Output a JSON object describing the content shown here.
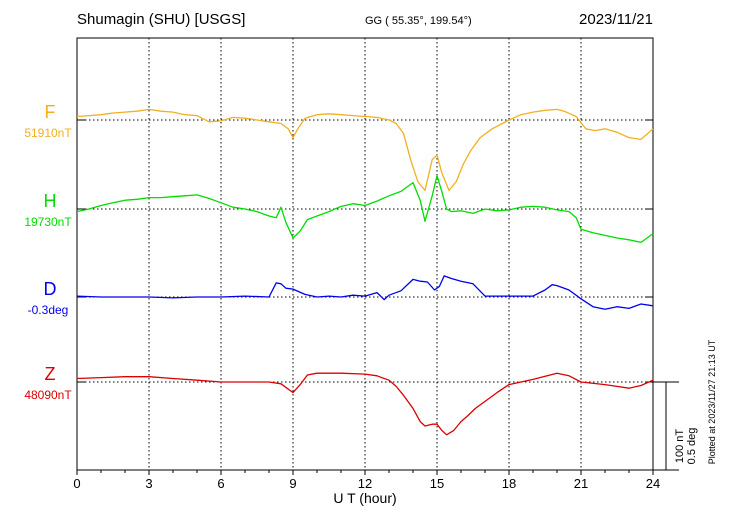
{
  "header": {
    "station": "Shumagin (SHU)  [USGS]",
    "coords": "GG ( 55.35°, 199.54°)",
    "date": "2023/11/21"
  },
  "plotted_note": "Plotted at 2023/11/27 21:13 UT",
  "scale_note": {
    "line1": "100 nT",
    "line2": "0.5 deg"
  },
  "chart_data": {
    "type": "line",
    "xlabel": "U T (hour)",
    "xlim": [
      0,
      24
    ],
    "xticks": [
      0,
      3,
      6,
      9,
      12,
      15,
      18,
      21,
      24
    ],
    "grid": true,
    "scale_nt_per_bar": 100,
    "series": [
      {
        "name": "F",
        "baseline_label": "51910nT",
        "color": "#f0b020",
        "x": [
          0,
          0.5,
          1,
          1.5,
          2,
          2.5,
          3,
          3.5,
          4,
          4.5,
          5,
          5.5,
          6,
          6.5,
          7,
          7.5,
          8,
          8.5,
          8.8,
          9,
          9.2,
          9.5,
          10,
          10.5,
          11,
          11.5,
          12,
          12.5,
          13,
          13.3,
          13.6,
          13.9,
          14.2,
          14.5,
          14.8,
          15,
          15.2,
          15.5,
          15.8,
          16.1,
          16.4,
          16.8,
          17.3,
          18,
          18.5,
          19,
          19.5,
          20,
          20.3,
          20.8,
          21.2,
          21.6,
          22,
          22.5,
          23,
          23.5,
          24
        ],
        "y": [
          4,
          5,
          6,
          8,
          9,
          10,
          12,
          10,
          9,
          6,
          5,
          -2,
          -1,
          3,
          2,
          0,
          -2,
          -4,
          -10,
          -20,
          -10,
          2,
          6,
          7,
          6,
          5,
          4,
          3,
          0,
          -4,
          -15,
          -45,
          -70,
          -80,
          -45,
          -40,
          -60,
          -80,
          -70,
          -50,
          -35,
          -20,
          -10,
          0,
          6,
          9,
          11,
          12,
          10,
          4,
          -10,
          -12,
          -10,
          -14,
          -20,
          -22,
          -10
        ]
      },
      {
        "name": "H",
        "baseline_label": "19730nT",
        "color": "#00dd00",
        "x": [
          0,
          0.5,
          1,
          1.5,
          2,
          2.5,
          3,
          3.5,
          4,
          4.5,
          5,
          5.5,
          6,
          6.5,
          7,
          7.5,
          8,
          8.3,
          8.5,
          8.7,
          9,
          9.3,
          9.6,
          10,
          10.5,
          11,
          11.5,
          12,
          12.5,
          13,
          13.5,
          14,
          14.3,
          14.5,
          14.8,
          15,
          15.2,
          15.4,
          15.6,
          16,
          16.5,
          17,
          17.5,
          18,
          18.5,
          19,
          19.5,
          20,
          20.5,
          20.8,
          21,
          21.5,
          22,
          22.5,
          23,
          23.5,
          24
        ],
        "y": [
          -3,
          0,
          4,
          7,
          10,
          11,
          13,
          13,
          14,
          15,
          16,
          12,
          7,
          2,
          0,
          -3,
          -8,
          -10,
          2,
          -15,
          -33,
          -25,
          -12,
          -8,
          -3,
          3,
          6,
          4,
          9,
          15,
          20,
          30,
          10,
          -14,
          15,
          38,
          20,
          0,
          -3,
          -2,
          -5,
          0,
          -2,
          -1,
          2,
          3,
          2,
          -1,
          -3,
          -10,
          -23,
          -27,
          -30,
          -33,
          -35,
          -38,
          -28
        ]
      },
      {
        "name": "D",
        "baseline_label": "-0.3deg",
        "color": "#0000ee",
        "x": [
          0,
          1,
          2,
          3,
          4,
          5,
          6,
          7,
          8,
          8.3,
          8.5,
          8.7,
          9,
          9.5,
          10,
          10.5,
          11,
          11.5,
          12,
          12.5,
          12.8,
          13,
          13.5,
          14,
          14.3,
          14.6,
          14.9,
          15.1,
          15.3,
          15.6,
          16,
          16.5,
          17,
          18,
          19,
          19.5,
          19.8,
          20,
          20.5,
          21,
          21.5,
          22,
          22.5,
          23,
          23.5,
          24
        ],
        "y": [
          1,
          0,
          0,
          0,
          -1,
          0,
          0,
          1,
          0,
          16,
          15,
          10,
          9,
          3,
          0,
          1,
          0,
          2,
          1,
          5,
          -3,
          2,
          7,
          20,
          18,
          17,
          8,
          12,
          24,
          21,
          18,
          15,
          1,
          1,
          1,
          8,
          14,
          13,
          8,
          -2,
          -11,
          -14,
          -11,
          -13,
          -8,
          -10
        ]
      },
      {
        "name": "Z",
        "baseline_label": "48090nT",
        "color": "#dd0000",
        "x": [
          0,
          1,
          2,
          3,
          4,
          5,
          6,
          7,
          8,
          8.5,
          9,
          9.3,
          9.6,
          10,
          11,
          12,
          12.5,
          13,
          13.3,
          13.6,
          14,
          14.3,
          14.5,
          14.8,
          15,
          15.2,
          15.4,
          15.7,
          16,
          16.3,
          16.6,
          17,
          17.5,
          18,
          19,
          20,
          20.5,
          21,
          22,
          22.5,
          23,
          23.5,
          24
        ],
        "y": [
          4,
          5,
          6,
          6,
          4,
          2,
          0,
          0,
          0,
          -2,
          -12,
          -3,
          8,
          10,
          10,
          9,
          7,
          2,
          -5,
          -15,
          -30,
          -45,
          -50,
          -48,
          -48,
          -55,
          -60,
          -55,
          -45,
          -38,
          -30,
          -22,
          -12,
          -3,
          3,
          10,
          7,
          0,
          -3,
          -5,
          -7,
          -4,
          2
        ]
      }
    ]
  }
}
